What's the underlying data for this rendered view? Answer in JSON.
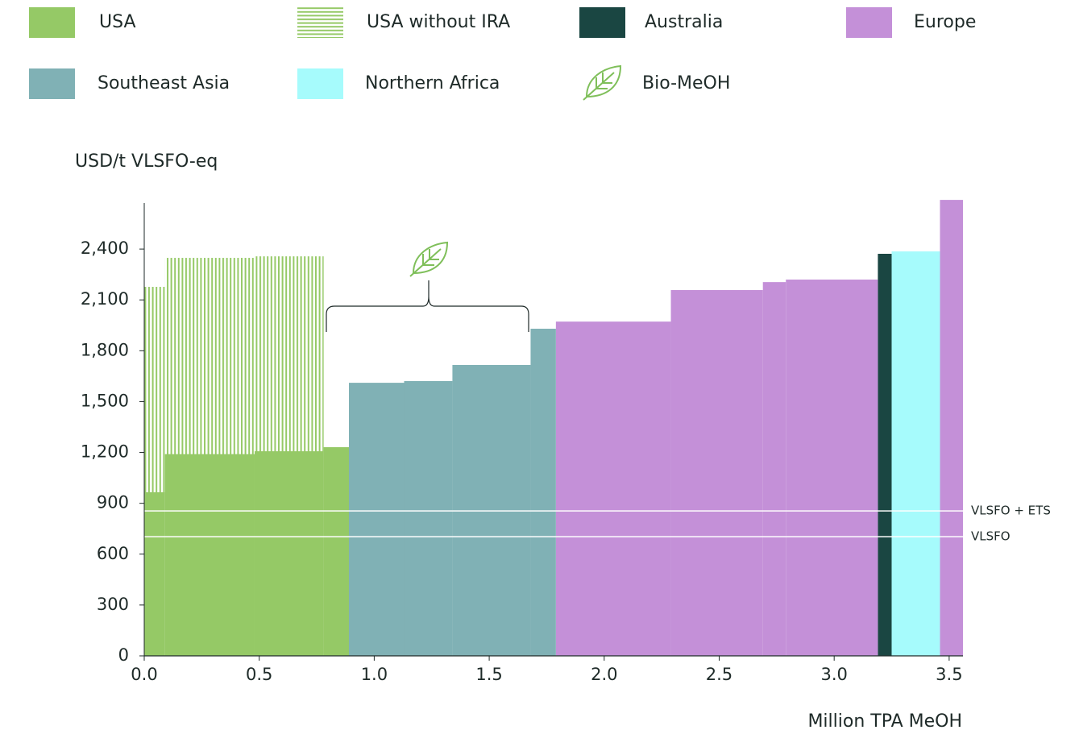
{
  "chart_data": {
    "type": "cost_curve",
    "y_label": "USD/t VLSFO-eq",
    "x_label": "Million TPA MeOH",
    "xlim": [
      0,
      3.56
    ],
    "ylim": [
      0,
      2700
    ],
    "xticks": [
      {
        "value": 0,
        "label": "0.0"
      },
      0.5,
      {
        "value": 1,
        "label": "1.0"
      },
      1.5,
      {
        "value": 2,
        "label": "2.0"
      },
      2.5,
      {
        "value": 3,
        "label": "3.0"
      },
      3.5
    ],
    "yticks": [
      0,
      300,
      600,
      900,
      {
        "value": 1200,
        "label": "1,200"
      },
      {
        "value": 1500,
        "label": "1,500"
      },
      {
        "value": 1800,
        "label": "1,800"
      },
      {
        "value": 2100,
        "label": "2,100"
      },
      {
        "value": 2400,
        "label": "2,400"
      }
    ],
    "series": [
      {
        "name": "USA without IRA",
        "color": "#95c966",
        "hatched": true,
        "x_start": [
          0,
          0.09,
          0.48
        ],
        "x_end": [
          0.09,
          0.48,
          0.78
        ],
        "values": [
          2177,
          2348,
          2357
        ]
      },
      {
        "name": "USA",
        "color": "#95c966",
        "x_start": [
          0,
          0.09,
          0.48,
          0.78
        ],
        "x_end": [
          0.09,
          0.48,
          0.78,
          0.89
        ],
        "values": [
          965,
          1190,
          1207,
          1231
        ]
      },
      {
        "name": "Australia",
        "color": "#1a4642",
        "x_start": [
          3.19
        ],
        "x_end": [
          3.25
        ],
        "values": [
          2372
        ]
      },
      {
        "name": "Europe",
        "color": "#c490d8",
        "x_start": [
          1.79,
          2.29,
          2.69,
          2.79,
          3.46
        ],
        "x_end": [
          2.29,
          2.69,
          2.79,
          3.19,
          3.56
        ],
        "values": [
          1972,
          2158,
          2205,
          2220,
          2690
        ]
      },
      {
        "name": "Southeast Asia",
        "color": "#80b1b5",
        "x_start": [
          0.89,
          1.13,
          1.34,
          1.68
        ],
        "x_end": [
          1.13,
          1.34,
          1.68,
          1.79
        ],
        "values": [
          1611,
          1621,
          1716,
          1930
        ]
      },
      {
        "name": "Northern Africa",
        "color": "#a6fbfc",
        "x_start": [
          3.25
        ],
        "x_end": [
          3.46
        ],
        "values": [
          2386
        ]
      }
    ],
    "legend_extra": "Bio-MeOH",
    "reference_lines": [
      {
        "label": "VLSFO + ETS",
        "value": 855
      },
      {
        "label": "VLSFO",
        "value": 703
      }
    ]
  }
}
